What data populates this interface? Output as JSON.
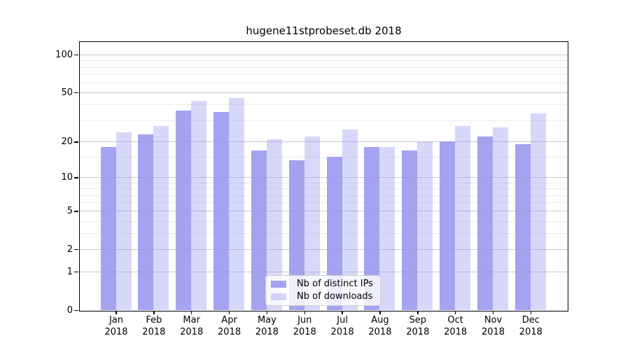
{
  "chart_data": {
    "type": "bar",
    "title": "hugene11stprobeset.db 2018",
    "categories": [
      "Jan",
      "Feb",
      "Mar",
      "Apr",
      "May",
      "Jun",
      "Jul",
      "Aug",
      "Sep",
      "Oct",
      "Nov",
      "Dec"
    ],
    "x_tick_year": "2018",
    "series": [
      {
        "name": "Nb of distinct IPs",
        "color": "rgba(150,150,238,0.88)",
        "values": [
          18,
          23,
          36,
          35,
          17,
          14,
          15,
          18,
          17,
          20,
          22,
          19
        ]
      },
      {
        "name": "Nb of downloads",
        "color": "rgba(150,150,238,0.38)",
        "values": [
          24,
          27,
          43,
          45,
          21,
          22,
          25,
          18,
          20,
          27,
          26,
          34
        ]
      }
    ],
    "xlabel": "",
    "ylabel": "",
    "yscale": "log10(1+y)",
    "ylim": [
      0,
      128
    ],
    "y_major_ticks": [
      0,
      1,
      2,
      5,
      10,
      20,
      50,
      100
    ],
    "y_minor_gridlines": [
      3,
      4,
      6,
      7,
      8,
      9,
      15,
      30,
      40,
      60,
      70,
      80,
      90
    ],
    "grid": "on",
    "legend_position": "lower center"
  },
  "colors": {
    "bar_dark": "#a2a2f0",
    "bar_light": "#d8d8f8",
    "grid_major": "#c9c9c9",
    "grid_minor": "#ebebeb",
    "axis": "#000000",
    "background": "#ffffff"
  }
}
